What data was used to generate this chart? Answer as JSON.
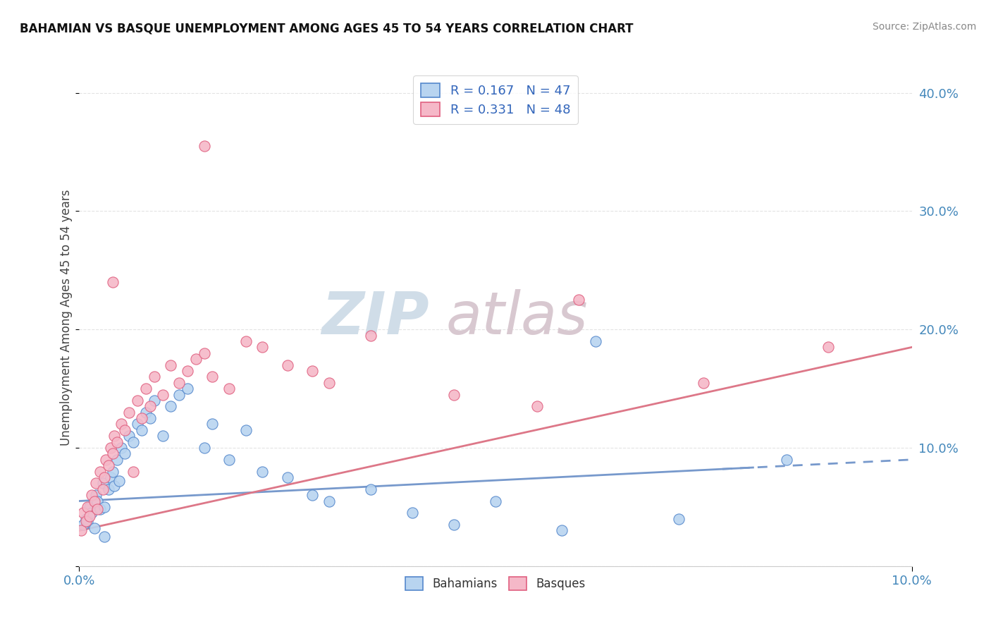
{
  "title": "BAHAMIAN VS BASQUE UNEMPLOYMENT AMONG AGES 45 TO 54 YEARS CORRELATION CHART",
  "source": "Source: ZipAtlas.com",
  "ylabel": "Unemployment Among Ages 45 to 54 years",
  "xlim": [
    0.0,
    10.0
  ],
  "ylim": [
    0.0,
    42.0
  ],
  "yticks": [
    0,
    10,
    20,
    30,
    40
  ],
  "ytick_labels": [
    "",
    "10.0%",
    "20.0%",
    "30.0%",
    "40.0%"
  ],
  "bahamian_color": "#b8d4f0",
  "basque_color": "#f5b8c8",
  "bahamian_edge_color": "#5588cc",
  "basque_edge_color": "#e06080",
  "bahamian_line_color": "#7799cc",
  "basque_line_color": "#dd7788",
  "legend_r1": "R = 0.167",
  "legend_n1": "N = 47",
  "legend_r2": "R = 0.331",
  "legend_n2": "N = 48",
  "watermark_zip": "ZIP",
  "watermark_atlas": "atlas",
  "grid_color": "#dddddd",
  "title_color": "#111111",
  "source_color": "#888888",
  "tick_color": "#4488bb",
  "legend_text_color": "#3366bb",
  "bah_x": [
    0.05,
    0.08,
    0.1,
    0.12,
    0.15,
    0.18,
    0.2,
    0.22,
    0.25,
    0.28,
    0.3,
    0.35,
    0.38,
    0.4,
    0.42,
    0.45,
    0.48,
    0.5,
    0.55,
    0.6,
    0.65,
    0.7,
    0.75,
    0.8,
    0.85,
    0.9,
    1.0,
    1.1,
    1.2,
    1.3,
    1.5,
    1.6,
    1.8,
    2.0,
    2.2,
    2.5,
    2.8,
    3.0,
    3.5,
    4.0,
    4.5,
    5.0,
    5.8,
    6.2,
    7.2,
    8.5,
    0.3
  ],
  "bah_y": [
    3.5,
    4.0,
    3.8,
    5.0,
    4.5,
    3.2,
    6.0,
    5.5,
    4.8,
    7.0,
    5.0,
    6.5,
    7.5,
    8.0,
    6.8,
    9.0,
    7.2,
    10.0,
    9.5,
    11.0,
    10.5,
    12.0,
    11.5,
    13.0,
    12.5,
    14.0,
    11.0,
    13.5,
    14.5,
    15.0,
    10.0,
    12.0,
    9.0,
    11.5,
    8.0,
    7.5,
    6.0,
    5.5,
    6.5,
    4.5,
    3.5,
    5.5,
    3.0,
    19.0,
    4.0,
    9.0,
    2.5
  ],
  "bas_x": [
    0.02,
    0.05,
    0.08,
    0.1,
    0.12,
    0.15,
    0.18,
    0.2,
    0.22,
    0.25,
    0.28,
    0.3,
    0.32,
    0.35,
    0.38,
    0.4,
    0.42,
    0.45,
    0.5,
    0.55,
    0.6,
    0.65,
    0.7,
    0.75,
    0.8,
    0.85,
    0.9,
    1.0,
    1.1,
    1.2,
    1.3,
    1.4,
    1.5,
    1.6,
    1.8,
    2.0,
    2.2,
    2.5,
    2.8,
    3.0,
    3.5,
    4.5,
    5.5,
    6.0,
    7.5,
    9.0,
    1.5,
    0.4
  ],
  "bas_y": [
    3.0,
    4.5,
    3.8,
    5.0,
    4.2,
    6.0,
    5.5,
    7.0,
    4.8,
    8.0,
    6.5,
    7.5,
    9.0,
    8.5,
    10.0,
    9.5,
    11.0,
    10.5,
    12.0,
    11.5,
    13.0,
    8.0,
    14.0,
    12.5,
    15.0,
    13.5,
    16.0,
    14.5,
    17.0,
    15.5,
    16.5,
    17.5,
    18.0,
    16.0,
    15.0,
    19.0,
    18.5,
    17.0,
    16.5,
    15.5,
    19.5,
    14.5,
    13.5,
    22.5,
    15.5,
    18.5,
    35.5,
    24.0
  ],
  "bah_line_x0": 0.0,
  "bah_line_x1": 10.0,
  "bah_line_y0": 5.5,
  "bah_line_y1": 9.0,
  "bas_line_x0": 0.0,
  "bas_line_x1": 10.0,
  "bas_line_y0": 3.0,
  "bas_line_y1": 18.5,
  "bah_solid_end": 8.0,
  "bah_dashed_start": 7.8
}
